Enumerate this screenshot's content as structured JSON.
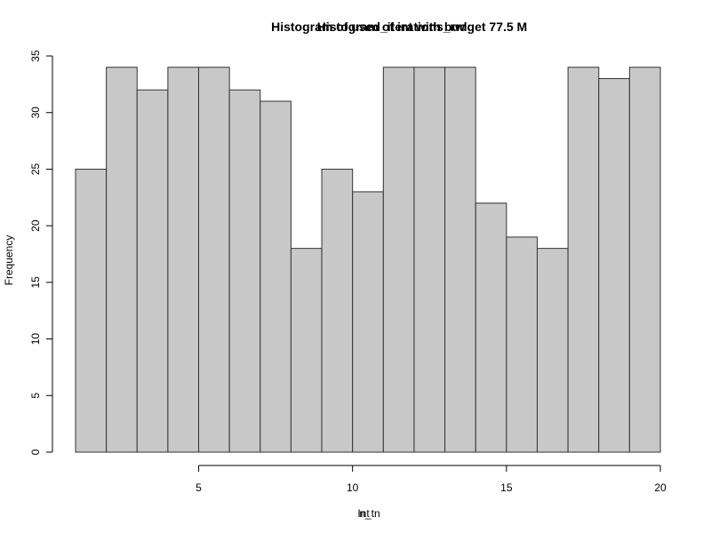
{
  "chart_data": {
    "type": "bar",
    "title_overlay_a": "Histogram of used_iterations_rw",
    "title_overlay_b": "Histogram of int with budget  77.5 M",
    "xlabel_overlay_a": "Int",
    "xlabel_overlay_b": "n_tn",
    "ylabel": "Frequency",
    "bins": [
      {
        "from": 1,
        "to": 2,
        "count": 25
      },
      {
        "from": 2,
        "to": 3,
        "count": 34
      },
      {
        "from": 3,
        "to": 4,
        "count": 32
      },
      {
        "from": 4,
        "to": 5,
        "count": 34
      },
      {
        "from": 5,
        "to": 6,
        "count": 34
      },
      {
        "from": 6,
        "to": 7,
        "count": 32
      },
      {
        "from": 7,
        "to": 8,
        "count": 31
      },
      {
        "from": 8,
        "to": 9,
        "count": 18
      },
      {
        "from": 9,
        "to": 10,
        "count": 25
      },
      {
        "from": 10,
        "to": 11,
        "count": 23
      },
      {
        "from": 11,
        "to": 12,
        "count": 34
      },
      {
        "from": 12,
        "to": 13,
        "count": 34
      },
      {
        "from": 13,
        "to": 14,
        "count": 34
      },
      {
        "from": 14,
        "to": 15,
        "count": 22
      },
      {
        "from": 15,
        "to": 16,
        "count": 19
      },
      {
        "from": 16,
        "to": 17,
        "count": 18
      },
      {
        "from": 17,
        "to": 18,
        "count": 34
      },
      {
        "from": 18,
        "to": 19,
        "count": 33
      },
      {
        "from": 19,
        "to": 20,
        "count": 34
      }
    ],
    "xlim": [
      1,
      20
    ],
    "ylim": [
      0,
      35
    ],
    "x_ticks": [
      5,
      10,
      15,
      20
    ],
    "y_ticks": [
      0,
      5,
      10,
      15,
      20,
      25,
      30,
      35
    ],
    "bar_fill": "#c8c8c8",
    "bar_stroke": "#333333",
    "grid": false,
    "legend": "none"
  }
}
